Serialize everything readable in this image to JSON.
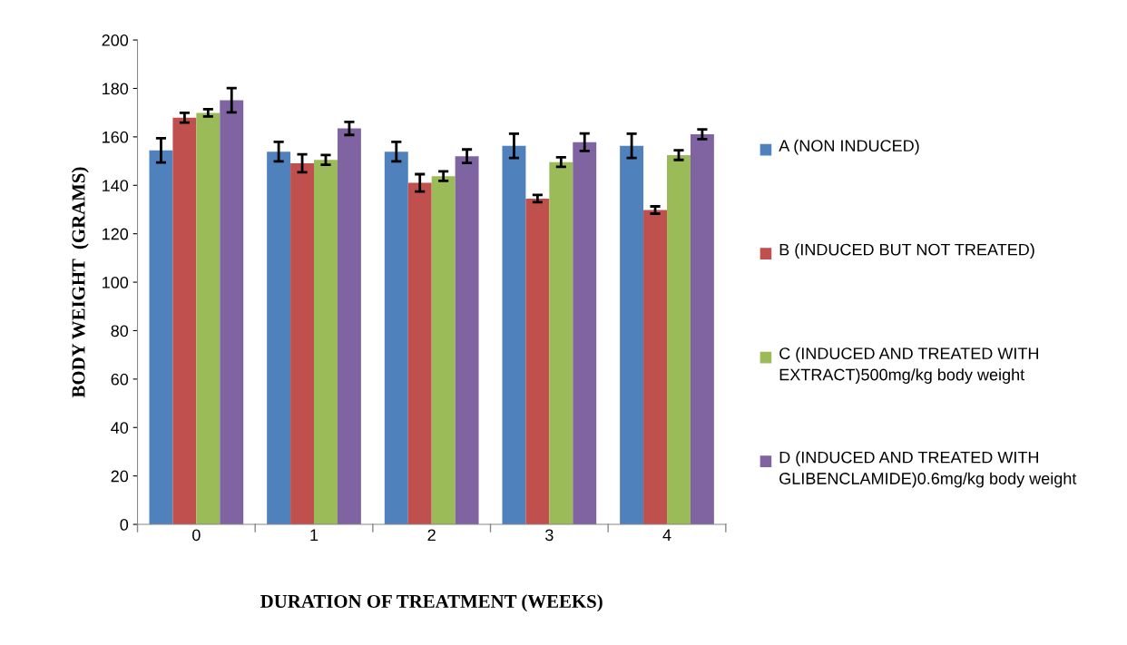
{
  "chart_data": {
    "type": "bar",
    "xlabel": "DURATION OF TREATMENT (WEEKS)",
    "ylabel": "BODY WEIGHT  (GRAMS)",
    "categories": [
      "0",
      "1",
      "2",
      "3",
      "4"
    ],
    "ylim": [
      0,
      200
    ],
    "yticks": [
      0,
      20,
      40,
      60,
      80,
      100,
      120,
      140,
      160,
      180,
      200
    ],
    "grid": false,
    "legend": "right",
    "series": [
      {
        "name": "A (NON INDUCED)",
        "color": "#4f81bd",
        "values": [
          154.4,
          153.9,
          153.9,
          156.3,
          156.3
        ],
        "errors": [
          5,
          4,
          4,
          5,
          5
        ]
      },
      {
        "name": "B (INDUCED BUT NOT TREATED)",
        "color": "#c0504d",
        "values": [
          167.9,
          149.1,
          141,
          134.5,
          129.8
        ],
        "errors": [
          2,
          3.7,
          3.6,
          1.5,
          1.5
        ]
      },
      {
        "name": "C (INDUCED AND TREATED WITH EXTRACT)500mg/kg body weight",
        "color": "#9bbb59",
        "values": [
          169.9,
          150.5,
          143.8,
          149.6,
          152.5
        ],
        "errors": [
          1.5,
          2,
          2,
          2,
          2
        ]
      },
      {
        "name": "D (INDUCED AND TREATED WITH GLIBENCLAMIDE)0.6mg/kg body weight",
        "color": "#8064a2",
        "values": [
          175.1,
          163.5,
          152,
          157.8,
          161.1
        ],
        "errors": [
          5,
          2.7,
          2.8,
          3.6,
          2
        ]
      }
    ]
  }
}
